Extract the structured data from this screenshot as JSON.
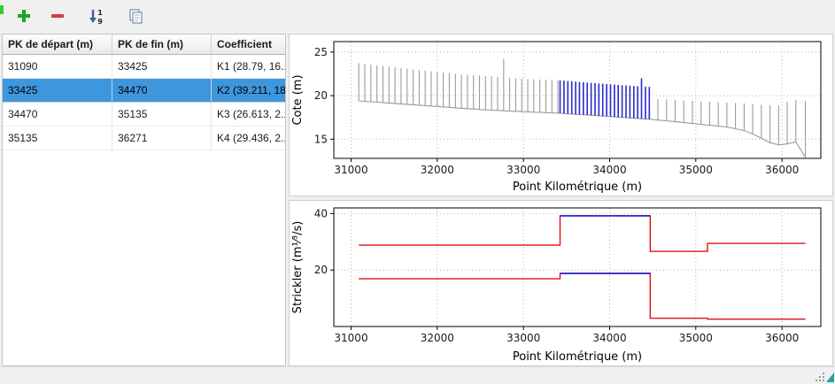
{
  "colors": {
    "selection_bg": "#3e96dd",
    "selection_text": "#000000",
    "add_icon": "#1fa81f",
    "remove_icon": "#d93b3b",
    "sort_icon": "#41648f",
    "copy_icon": "#7d8d9d",
    "edge_accent": "#2fd12f",
    "corner_accent": "#2aa19c"
  },
  "toolbar": {
    "sort_digit_top": "1",
    "sort_digit_bottom": "9"
  },
  "table": {
    "columns": [
      "PK de départ (m)",
      "PK de fin (m)",
      "Coefficient"
    ],
    "rows": [
      {
        "pk_start": "31090",
        "pk_end": "33425",
        "coefficient": "K1 (28.79, 16...",
        "selected": false
      },
      {
        "pk_start": "33425",
        "pk_end": "34470",
        "coefficient": "K2 (39.211, 18...",
        "selected": true
      },
      {
        "pk_start": "34470",
        "pk_end": "35135",
        "coefficient": "K3 (26.613, 2...",
        "selected": false
      },
      {
        "pk_start": "35135",
        "pk_end": "36271",
        "coefficient": "K4 (29.436, 2...",
        "selected": false
      }
    ]
  },
  "chart_data": [
    {
      "type": "bar",
      "title": "",
      "xlabel": "Point Kilométrique (m)",
      "ylabel": "Cote (m)",
      "xlim": [
        30800,
        36450
      ],
      "ylim": [
        12.8,
        26.2
      ],
      "xticks": [
        31000,
        32000,
        33000,
        34000,
        35000,
        36000
      ],
      "yticks": [
        15,
        20,
        25
      ],
      "grid": true,
      "bar_color": "#9a9a9a",
      "selected_bar_color": "#2a2ad0",
      "selected_range": [
        33425,
        34470
      ],
      "sections": [
        [
          31090,
          19.4,
          23.7
        ],
        [
          31160,
          19.35,
          23.6
        ],
        [
          31230,
          19.3,
          23.55
        ],
        [
          31300,
          19.27,
          23.45
        ],
        [
          31370,
          19.2,
          23.4
        ],
        [
          31440,
          19.15,
          23.3
        ],
        [
          31510,
          19.1,
          23.25
        ],
        [
          31580,
          19.05,
          23.15
        ],
        [
          31650,
          19.0,
          23.1
        ],
        [
          31720,
          18.95,
          23.0
        ],
        [
          31790,
          18.9,
          22.95
        ],
        [
          31860,
          18.86,
          22.85
        ],
        [
          31930,
          18.8,
          22.8
        ],
        [
          32000,
          18.76,
          22.7
        ],
        [
          32070,
          18.7,
          22.65
        ],
        [
          32140,
          18.66,
          22.6
        ],
        [
          32210,
          18.6,
          22.5
        ],
        [
          32280,
          18.56,
          22.45
        ],
        [
          32350,
          18.5,
          22.4
        ],
        [
          32420,
          18.46,
          22.35
        ],
        [
          32490,
          18.4,
          22.3
        ],
        [
          32560,
          18.37,
          22.25
        ],
        [
          32630,
          18.33,
          22.2
        ],
        [
          32700,
          18.3,
          22.15
        ],
        [
          32770,
          18.26,
          24.2
        ],
        [
          32840,
          18.22,
          22.05
        ],
        [
          32910,
          18.2,
          22.0
        ],
        [
          32980,
          18.17,
          21.95
        ],
        [
          33050,
          18.14,
          21.9
        ],
        [
          33120,
          18.1,
          21.88
        ],
        [
          33190,
          18.08,
          21.85
        ],
        [
          33260,
          18.05,
          21.83
        ],
        [
          33330,
          18.02,
          21.8
        ],
        [
          33400,
          18.0,
          21.78
        ],
        [
          33425,
          17.98,
          21.75
        ],
        [
          33470,
          17.95,
          21.72
        ],
        [
          33515,
          17.92,
          21.68
        ],
        [
          33560,
          17.89,
          21.65
        ],
        [
          33605,
          17.86,
          21.6
        ],
        [
          33650,
          17.83,
          21.57
        ],
        [
          33695,
          17.8,
          21.53
        ],
        [
          33740,
          17.77,
          21.5
        ],
        [
          33785,
          17.74,
          21.47
        ],
        [
          33830,
          17.71,
          21.43
        ],
        [
          33875,
          17.68,
          21.4
        ],
        [
          33920,
          17.65,
          21.37
        ],
        [
          33965,
          17.62,
          21.33
        ],
        [
          34010,
          17.59,
          21.3
        ],
        [
          34055,
          17.56,
          21.27
        ],
        [
          34100,
          17.53,
          21.23
        ],
        [
          34145,
          17.5,
          21.2
        ],
        [
          34190,
          17.47,
          21.17
        ],
        [
          34235,
          17.44,
          21.13
        ],
        [
          34280,
          17.41,
          21.1
        ],
        [
          34325,
          17.38,
          21.07
        ],
        [
          34370,
          17.35,
          22.0
        ],
        [
          34415,
          17.33,
          21.03
        ],
        [
          34460,
          17.3,
          21.0
        ],
        [
          34560,
          17.2,
          19.6
        ],
        [
          34660,
          17.1,
          19.55
        ],
        [
          34760,
          17.0,
          19.5
        ],
        [
          34860,
          16.9,
          19.45
        ],
        [
          34960,
          16.8,
          19.4
        ],
        [
          35060,
          16.7,
          19.35
        ],
        [
          35160,
          16.6,
          19.3
        ],
        [
          35260,
          16.5,
          19.25
        ],
        [
          35360,
          16.4,
          19.2
        ],
        [
          35460,
          16.2,
          19.15
        ],
        [
          35560,
          16.0,
          19.1
        ],
        [
          35660,
          15.6,
          19.0
        ],
        [
          35760,
          15.1,
          18.95
        ],
        [
          35860,
          14.6,
          18.9
        ],
        [
          35960,
          14.35,
          18.85
        ],
        [
          36060,
          14.45,
          19.3
        ],
        [
          36160,
          14.7,
          19.5
        ],
        [
          36271,
          12.9,
          19.4
        ]
      ]
    },
    {
      "type": "line",
      "title": "",
      "xlabel": "Point Kilométrique (m)",
      "ylabel": "Strickler (m¹⁄³/s)",
      "xlim": [
        30800,
        36450
      ],
      "ylim": [
        0,
        42
      ],
      "xticks": [
        31000,
        32000,
        33000,
        34000,
        35000,
        36000
      ],
      "yticks": [
        20,
        40
      ],
      "grid": true,
      "line_color": "#e01010",
      "selected_color": "#2a2ad0",
      "segments": [
        {
          "name": "K1",
          "start": 31090,
          "end": 33425,
          "k_upper": 28.79,
          "k_lower": 16.9,
          "selected": false
        },
        {
          "name": "K2",
          "start": 33425,
          "end": 34470,
          "k_upper": 39.211,
          "k_lower": 18.8,
          "selected": true
        },
        {
          "name": "K3",
          "start": 34470,
          "end": 35135,
          "k_upper": 26.613,
          "k_lower": 2.9,
          "selected": false
        },
        {
          "name": "K4",
          "start": 35135,
          "end": 36271,
          "k_upper": 29.436,
          "k_lower": 2.6,
          "selected": false
        }
      ]
    }
  ]
}
